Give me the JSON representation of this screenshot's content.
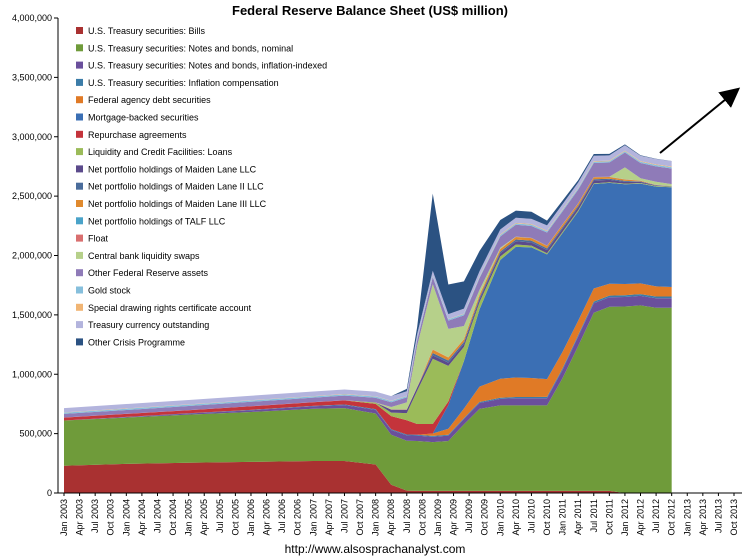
{
  "chart_data": {
    "type": "area",
    "stacked": true,
    "title": "Federal Reserve Balance Sheet (US$ million)",
    "source": "http://www.alsosprachanalyst.com",
    "xlabel": "",
    "ylabel": "",
    "ylim": [
      0,
      4000000
    ],
    "yticks": [
      0,
      500000,
      1000000,
      1500000,
      2000000,
      2500000,
      3000000,
      3500000,
      4000000
    ],
    "ytick_labels": [
      "0",
      "500,000",
      "1,000,000",
      "1,500,000",
      "2,000,000",
      "2,500,000",
      "3,000,000",
      "3,500,000",
      "4,000,000"
    ],
    "xtick_labels": [
      "Jan 2003",
      "Apr 2003",
      "Jul 2003",
      "Oct 2003",
      "Jan 2004",
      "Apr 2004",
      "Jul 2004",
      "Oct 2004",
      "Jan 2005",
      "Apr 2005",
      "Jul 2005",
      "Oct 2005",
      "Jan 2006",
      "Apr 2006",
      "Jul 2006",
      "Oct 2006",
      "Jan 2007",
      "Apr 2007",
      "Jul 2007",
      "Oct 2007",
      "Jan 2008",
      "Apr 2008",
      "Jul 2008",
      "Oct 2008",
      "Jan 2009",
      "Apr 2009",
      "Jul 2009",
      "Oct 2009",
      "Jan 2010",
      "Apr 2010",
      "Jul 2010",
      "Oct 2010",
      "Jan 2011",
      "Apr 2011",
      "Jul 2011",
      "Oct 2011",
      "Jan 2012",
      "Apr 2012",
      "Jul 2012",
      "Oct 2012",
      "Jan 2013",
      "Apr 2013",
      "Jul 2013",
      "Oct 2013"
    ],
    "x": [
      "Jan 2003",
      "Jan 2004",
      "Jan 2005",
      "Jan 2006",
      "Jan 2007",
      "Jul 2007",
      "Jan 2008",
      "Apr 2008",
      "Jul 2008",
      "Sep 2008",
      "Dec 2008",
      "Mar 2009",
      "Jun 2009",
      "Sep 2009",
      "Jan 2010",
      "Apr 2010",
      "Jul 2010",
      "Oct 2010",
      "Jan 2011",
      "Apr 2011",
      "Jul 2011",
      "Oct 2011",
      "Jan 2012",
      "Apr 2012",
      "Jul 2012",
      "Oct 2012"
    ],
    "series": [
      {
        "name": "U.S. Treasury securities: Bills",
        "color": "#a93131",
        "values": [
          230000,
          245000,
          255000,
          262000,
          270000,
          270000,
          240000,
          70000,
          20000,
          18000,
          18000,
          18000,
          18000,
          18000,
          18000,
          18000,
          18000,
          18000,
          18000,
          18000,
          18000,
          18000,
          0,
          0,
          0,
          0
        ]
      },
      {
        "name": "U.S. Treasury securities: Notes and bonds, nominal",
        "color": "#6f9b3a",
        "values": [
          380000,
          390000,
          405000,
          420000,
          440000,
          445000,
          430000,
          420000,
          420000,
          420000,
          410000,
          420000,
          560000,
          690000,
          720000,
          720000,
          720000,
          720000,
          950000,
          1220000,
          1500000,
          1550000,
          1570000,
          1580000,
          1560000,
          1560000
        ]
      },
      {
        "name": "U.S. Treasury securities: Notes and bonds, inflation-indexed",
        "color": "#6a4f9c",
        "values": [
          0,
          5000,
          10000,
          15000,
          20000,
          25000,
          30000,
          40000,
          45000,
          45000,
          45000,
          45000,
          45000,
          50000,
          55000,
          60000,
          60000,
          60000,
          70000,
          80000,
          80000,
          80000,
          80000,
          80000,
          80000,
          80000
        ]
      },
      {
        "name": "U.S. Treasury securities: Inflation compensation",
        "color": "#3b7ca8",
        "values": [
          0,
          1000,
          2000,
          3000,
          4000,
          5000,
          6000,
          7000,
          8000,
          8000,
          8000,
          8000,
          8000,
          8000,
          9000,
          10000,
          10000,
          11000,
          12000,
          13000,
          14000,
          14000,
          15000,
          15000,
          15000,
          15000
        ]
      },
      {
        "name": "Federal agency debt securities",
        "color": "#e07a26",
        "values": [
          0,
          0,
          0,
          0,
          0,
          0,
          0,
          0,
          0,
          0,
          20000,
          50000,
          80000,
          130000,
          160000,
          165000,
          160000,
          150000,
          140000,
          120000,
          110000,
          100000,
          95000,
          90000,
          85000,
          80000
        ]
      },
      {
        "name": "Mortgage-backed securities",
        "color": "#3b6fb4",
        "values": [
          0,
          0,
          0,
          0,
          0,
          0,
          0,
          0,
          0,
          0,
          0,
          200000,
          400000,
          650000,
          1000000,
          1100000,
          1100000,
          1050000,
          1000000,
          920000,
          880000,
          850000,
          840000,
          840000,
          840000,
          840000
        ]
      },
      {
        "name": "Repurchase agreements",
        "color": "#c4343b",
        "values": [
          25000,
          25000,
          25000,
          30000,
          30000,
          35000,
          45000,
          110000,
          120000,
          90000,
          80000,
          30000,
          0,
          0,
          0,
          0,
          0,
          0,
          0,
          0,
          0,
          0,
          0,
          0,
          0,
          0
        ]
      },
      {
        "name": "Liquidity and Credit Facilities: Loans",
        "color": "#9bbb59",
        "values": [
          0,
          0,
          0,
          0,
          0,
          0,
          10000,
          30000,
          60000,
          280000,
          550000,
          300000,
          120000,
          60000,
          30000,
          20000,
          15000,
          10000,
          10000,
          10000,
          5000,
          5000,
          5000,
          5000,
          5000,
          5000
        ]
      },
      {
        "name": "Net portfolio holdings of Maiden Lane LLC",
        "color": "#5b4a8b",
        "values": [
          0,
          0,
          0,
          0,
          0,
          0,
          0,
          25000,
          28000,
          28000,
          28000,
          27000,
          26000,
          26000,
          26000,
          27000,
          27000,
          27000,
          27000,
          26000,
          25000,
          20000,
          15000,
          10000,
          5000,
          2000
        ]
      },
      {
        "name": "Net portfolio holdings of Maiden Lane II LLC",
        "color": "#4a6c9b",
        "values": [
          0,
          0,
          0,
          0,
          0,
          0,
          0,
          0,
          0,
          0,
          20000,
          18000,
          16000,
          15000,
          15000,
          15000,
          15000,
          14000,
          13000,
          12000,
          10000,
          9000,
          8000,
          4000,
          2000,
          1000
        ]
      },
      {
        "name": "Net portfolio holdings of Maiden Lane III LLC",
        "color": "#e08a2e",
        "values": [
          0,
          0,
          0,
          0,
          0,
          0,
          0,
          0,
          0,
          0,
          27000,
          25000,
          22000,
          21000,
          21000,
          21000,
          21000,
          21000,
          21000,
          19000,
          17000,
          15000,
          12000,
          5000,
          2000,
          1000
        ]
      },
      {
        "name": "Net portfolio holdings of TALF LLC",
        "color": "#4aa3c9",
        "values": [
          0,
          0,
          0,
          0,
          0,
          0,
          0,
          0,
          0,
          0,
          0,
          0,
          0,
          0,
          500,
          600,
          650,
          700,
          700,
          750,
          800,
          800,
          850,
          850,
          850,
          850
        ]
      },
      {
        "name": "Float",
        "color": "#d96f6f",
        "values": [
          1000,
          1000,
          1000,
          1000,
          1000,
          1000,
          1000,
          2000,
          2000,
          3000,
          3000,
          1000,
          1000,
          1000,
          1000,
          1000,
          1000,
          1000,
          1000,
          1000,
          1000,
          1000,
          1000,
          1000,
          1000,
          1000
        ]
      },
      {
        "name": "Central bank liquidity swaps",
        "color": "#b6d08a",
        "values": [
          0,
          0,
          0,
          0,
          0,
          0,
          0,
          20000,
          60000,
          350000,
          550000,
          240000,
          110000,
          40000,
          10000,
          1000,
          1000,
          500,
          100,
          100,
          100,
          100,
          100000,
          20000,
          25000,
          15000
        ]
      },
      {
        "name": "Other Federal Reserve assets",
        "color": "#8f7bb8",
        "values": [
          30000,
          32000,
          35000,
          37000,
          38000,
          39000,
          40000,
          40000,
          42000,
          45000,
          60000,
          70000,
          90000,
          100000,
          95000,
          100000,
          100000,
          110000,
          110000,
          115000,
          118000,
          120000,
          125000,
          128000,
          130000,
          132000
        ]
      },
      {
        "name": "Gold stock",
        "color": "#86bfdc",
        "values": [
          11000,
          11000,
          11000,
          11000,
          11000,
          11000,
          11000,
          11000,
          11000,
          11000,
          11000,
          11000,
          11000,
          11000,
          11000,
          11000,
          11000,
          11000,
          11000,
          11000,
          11000,
          11000,
          11000,
          11000,
          11000,
          11000
        ]
      },
      {
        "name": "Special drawing rights certificate account",
        "color": "#f1b574",
        "values": [
          2200,
          2200,
          2200,
          2200,
          2200,
          2200,
          2200,
          2200,
          2200,
          2200,
          2200,
          2200,
          3200,
          5200,
          5200,
          5200,
          5200,
          5200,
          5200,
          5200,
          5200,
          5200,
          5200,
          5200,
          5200,
          5200
        ]
      },
      {
        "name": "Treasury currency outstanding",
        "color": "#b3b4dd",
        "values": [
          36000,
          37000,
          37500,
          38000,
          38500,
          38500,
          38700,
          38700,
          38700,
          38800,
          38900,
          41000,
          42000,
          42200,
          42500,
          43000,
          43500,
          44000,
          44000,
          44000,
          44500,
          44500,
          45000,
          45000,
          45500,
          46000
        ]
      },
      {
        "name": "Other Crisis Programme",
        "color": "#2b5282",
        "values": [
          0,
          0,
          0,
          0,
          0,
          0,
          0,
          0,
          20000,
          60000,
          650000,
          250000,
          230000,
          170000,
          80000,
          60000,
          60000,
          40000,
          30000,
          20000,
          15000,
          12000,
          8000,
          4000,
          2000,
          1000
        ]
      }
    ],
    "legend_position": "top-left",
    "grid": false,
    "annotation": "arrow pointing up-right from the end of the series"
  }
}
